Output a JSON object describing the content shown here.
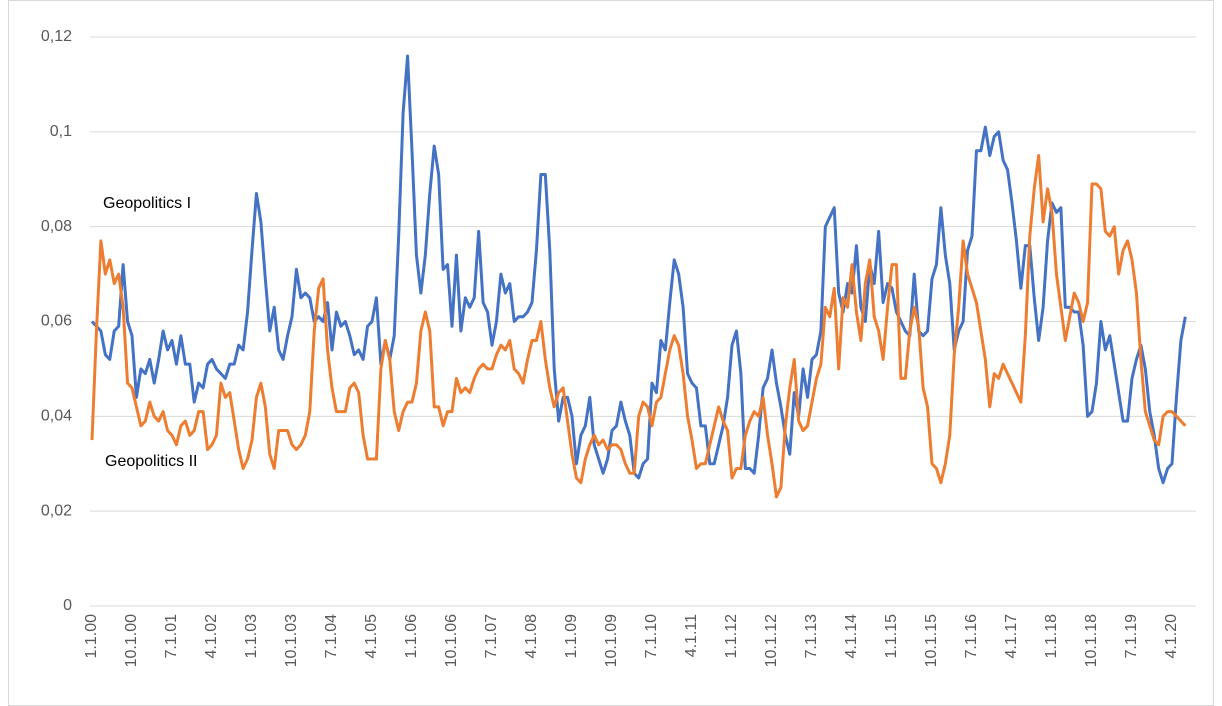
{
  "chart_data": {
    "type": "line",
    "categories": [
      "1.1.00",
      null,
      null,
      null,
      null,
      null,
      null,
      null,
      null,
      "10.1.00",
      null,
      null,
      null,
      null,
      null,
      null,
      null,
      null,
      "7.1.01",
      null,
      null,
      null,
      null,
      null,
      null,
      null,
      null,
      "4.1.02",
      null,
      null,
      null,
      null,
      null,
      null,
      null,
      null,
      "1.1.03",
      null,
      null,
      null,
      null,
      null,
      null,
      null,
      null,
      "10.1.03",
      null,
      null,
      null,
      null,
      null,
      null,
      null,
      null,
      "7.1.04",
      null,
      null,
      null,
      null,
      null,
      null,
      null,
      null,
      "4.1.05",
      null,
      null,
      null,
      null,
      null,
      null,
      null,
      null,
      "1.1.06",
      null,
      null,
      null,
      null,
      null,
      null,
      null,
      null,
      "10.1.06",
      null,
      null,
      null,
      null,
      null,
      null,
      null,
      null,
      "7.1.07",
      null,
      null,
      null,
      null,
      null,
      null,
      null,
      null,
      "4.1.08",
      null,
      null,
      null,
      null,
      null,
      null,
      null,
      null,
      "1.1.09",
      null,
      null,
      null,
      null,
      null,
      null,
      null,
      null,
      "10.1.09",
      null,
      null,
      null,
      null,
      null,
      null,
      null,
      null,
      "7.1.10",
      null,
      null,
      null,
      null,
      null,
      null,
      null,
      null,
      "4.1.11",
      null,
      null,
      null,
      null,
      null,
      null,
      null,
      null,
      "1.1.12",
      null,
      null,
      null,
      null,
      null,
      null,
      null,
      null,
      "10.1.12",
      null,
      null,
      null,
      null,
      null,
      null,
      null,
      null,
      "7.1.13",
      null,
      null,
      null,
      null,
      null,
      null,
      null,
      null,
      "4.1.14",
      null,
      null,
      null,
      null,
      null,
      null,
      null,
      null,
      "1.1.15",
      null,
      null,
      null,
      null,
      null,
      null,
      null,
      null,
      "10.1.15",
      null,
      null,
      null,
      null,
      null,
      null,
      null,
      null,
      "7.1.16",
      null,
      null,
      null,
      null,
      null,
      null,
      null,
      null,
      "4.1.17",
      null,
      null,
      null,
      null,
      null,
      null,
      null,
      null,
      "1.1.18",
      null,
      null,
      null,
      null,
      null,
      null,
      null,
      null,
      "10.1.18",
      null,
      null,
      null,
      null,
      null,
      null,
      null,
      null,
      "7.1.19",
      null,
      null,
      null,
      null,
      null,
      null,
      null,
      null,
      "4.1.20",
      null,
      null,
      null
    ],
    "series": [
      {
        "name": "Geopolitics I",
        "color": "#4472c4",
        "values": [
          0.06,
          0.059,
          0.058,
          0.053,
          0.052,
          0.058,
          0.059,
          0.072,
          0.06,
          0.057,
          0.044,
          0.05,
          0.049,
          0.052,
          0.047,
          0.052,
          0.058,
          0.054,
          0.056,
          0.051,
          0.057,
          0.051,
          0.051,
          0.043,
          0.047,
          0.046,
          0.051,
          0.052,
          0.05,
          0.049,
          0.048,
          0.051,
          0.051,
          0.055,
          0.054,
          0.062,
          0.075,
          0.087,
          0.081,
          0.069,
          0.058,
          0.063,
          0.054,
          0.052,
          0.057,
          0.061,
          0.071,
          0.065,
          0.066,
          0.065,
          0.06,
          0.061,
          0.06,
          0.064,
          0.054,
          0.062,
          0.059,
          0.06,
          0.057,
          0.053,
          0.054,
          0.052,
          0.059,
          0.06,
          0.065,
          0.051,
          0.056,
          0.052,
          0.057,
          0.078,
          0.104,
          0.116,
          0.096,
          0.074,
          0.066,
          0.074,
          0.087,
          0.097,
          0.091,
          0.071,
          0.072,
          0.059,
          0.074,
          0.058,
          0.065,
          0.063,
          0.065,
          0.079,
          0.064,
          0.062,
          0.055,
          0.06,
          0.07,
          0.066,
          0.068,
          0.06,
          0.061,
          0.061,
          0.062,
          0.064,
          0.075,
          0.091,
          0.091,
          0.075,
          0.05,
          0.039,
          0.044,
          0.044,
          0.04,
          0.03,
          0.036,
          0.038,
          0.044,
          0.034,
          0.031,
          0.028,
          0.031,
          0.037,
          0.038,
          0.043,
          0.039,
          0.036,
          0.028,
          0.027,
          0.03,
          0.031,
          0.047,
          0.045,
          0.056,
          0.054,
          0.064,
          0.073,
          0.07,
          0.063,
          0.049,
          0.047,
          0.046,
          0.038,
          0.038,
          0.03,
          0.03,
          0.034,
          0.038,
          0.044,
          0.055,
          0.058,
          0.049,
          0.029,
          0.029,
          0.028,
          0.036,
          0.046,
          0.048,
          0.054,
          0.047,
          0.042,
          0.036,
          0.032,
          0.045,
          0.04,
          0.05,
          0.044,
          0.052,
          0.053,
          0.058,
          0.08,
          0.082,
          0.084,
          0.066,
          0.062,
          0.068,
          0.066,
          0.076,
          0.063,
          0.06,
          0.072,
          0.068,
          0.079,
          0.064,
          0.068,
          0.067,
          0.062,
          0.06,
          0.058,
          0.057,
          0.07,
          0.058,
          0.057,
          0.058,
          0.069,
          0.072,
          0.084,
          0.074,
          0.068,
          0.054,
          0.058,
          0.06,
          0.075,
          0.078,
          0.096,
          0.096,
          0.101,
          0.095,
          0.099,
          0.1,
          0.094,
          0.092,
          0.085,
          0.077,
          0.067,
          0.076,
          0.076,
          0.065,
          0.056,
          0.063,
          0.077,
          0.085,
          0.083,
          0.084,
          0.063,
          0.063,
          0.062,
          0.062,
          0.055,
          0.04,
          0.041,
          0.047,
          0.06,
          0.054,
          0.057,
          0.051,
          0.045,
          0.039,
          0.039,
          0.048,
          0.052,
          0.055,
          0.05,
          0.041,
          0.036,
          0.029,
          0.026,
          0.029,
          0.03,
          0.044,
          0.056,
          0.061
        ]
      },
      {
        "name": "Geopolitics II",
        "color": "#ed7d31",
        "values": [
          0.035,
          0.058,
          0.077,
          0.07,
          0.073,
          0.068,
          0.07,
          0.063,
          0.047,
          0.046,
          0.042,
          0.038,
          0.039,
          0.043,
          0.04,
          0.039,
          0.041,
          0.037,
          0.036,
          0.034,
          0.038,
          0.039,
          0.036,
          0.037,
          0.041,
          0.041,
          0.033,
          0.034,
          0.036,
          0.047,
          0.044,
          0.045,
          0.039,
          0.033,
          0.029,
          0.031,
          0.035,
          0.044,
          0.047,
          0.042,
          0.032,
          0.029,
          0.037,
          0.037,
          0.037,
          0.034,
          0.033,
          0.034,
          0.036,
          0.041,
          0.058,
          0.067,
          0.069,
          0.054,
          0.046,
          0.041,
          0.041,
          0.041,
          0.046,
          0.047,
          0.045,
          0.036,
          0.031,
          0.031,
          0.031,
          0.05,
          0.056,
          0.052,
          0.041,
          0.037,
          0.041,
          0.043,
          0.043,
          0.047,
          0.058,
          0.062,
          0.058,
          0.042,
          0.042,
          0.038,
          0.041,
          0.041,
          0.048,
          0.045,
          0.046,
          0.045,
          0.048,
          0.05,
          0.051,
          0.05,
          0.05,
          0.053,
          0.055,
          0.054,
          0.056,
          0.05,
          0.049,
          0.047,
          0.052,
          0.056,
          0.056,
          0.06,
          0.052,
          0.046,
          0.042,
          0.045,
          0.046,
          0.039,
          0.032,
          0.027,
          0.026,
          0.031,
          0.034,
          0.036,
          0.034,
          0.035,
          0.033,
          0.034,
          0.034,
          0.033,
          0.03,
          0.028,
          0.028,
          0.04,
          0.043,
          0.042,
          0.038,
          0.043,
          0.044,
          0.049,
          0.054,
          0.057,
          0.055,
          0.049,
          0.04,
          0.035,
          0.029,
          0.03,
          0.03,
          0.034,
          0.038,
          0.042,
          0.039,
          0.037,
          0.027,
          0.029,
          0.029,
          0.036,
          0.039,
          0.041,
          0.04,
          0.044,
          0.036,
          0.03,
          0.023,
          0.025,
          0.038,
          0.046,
          0.052,
          0.039,
          0.037,
          0.038,
          0.043,
          0.048,
          0.051,
          0.063,
          0.061,
          0.067,
          0.05,
          0.065,
          0.063,
          0.072,
          0.062,
          0.056,
          0.068,
          0.073,
          0.061,
          0.058,
          0.052,
          0.063,
          0.072,
          0.072,
          0.048,
          0.048,
          0.058,
          0.063,
          0.059,
          0.046,
          0.042,
          0.03,
          0.029,
          0.026,
          0.03,
          0.036,
          0.053,
          0.063,
          0.077,
          0.07,
          0.067,
          0.064,
          0.058,
          0.052,
          0.042,
          0.049,
          0.048,
          0.051,
          0.049,
          0.047,
          0.045,
          0.043,
          0.057,
          0.078,
          0.088,
          0.095,
          0.081,
          0.088,
          0.083,
          0.07,
          0.063,
          0.056,
          0.061,
          0.066,
          0.064,
          0.06,
          0.064,
          0.089,
          0.089,
          0.088,
          0.079,
          0.078,
          0.08,
          0.07,
          0.075,
          0.077,
          0.073,
          0.066,
          0.052,
          0.041,
          0.038,
          0.035,
          0.034,
          0.04,
          0.041,
          0.041,
          0.04,
          0.039,
          0.038
        ]
      }
    ],
    "ylim": [
      0,
      0.12
    ],
    "yticks": [
      0,
      {
        "value": 0.02,
        "label": "0,02"
      },
      {
        "value": 0.04,
        "label": "0,04"
      },
      {
        "value": 0.06,
        "label": "0,06"
      },
      {
        "value": 0.08,
        "label": "0,08"
      },
      {
        "value": 0.1,
        "label": "0,1"
      },
      {
        "value": 0.12,
        "label": "0,12"
      }
    ],
    "grid": true
  }
}
